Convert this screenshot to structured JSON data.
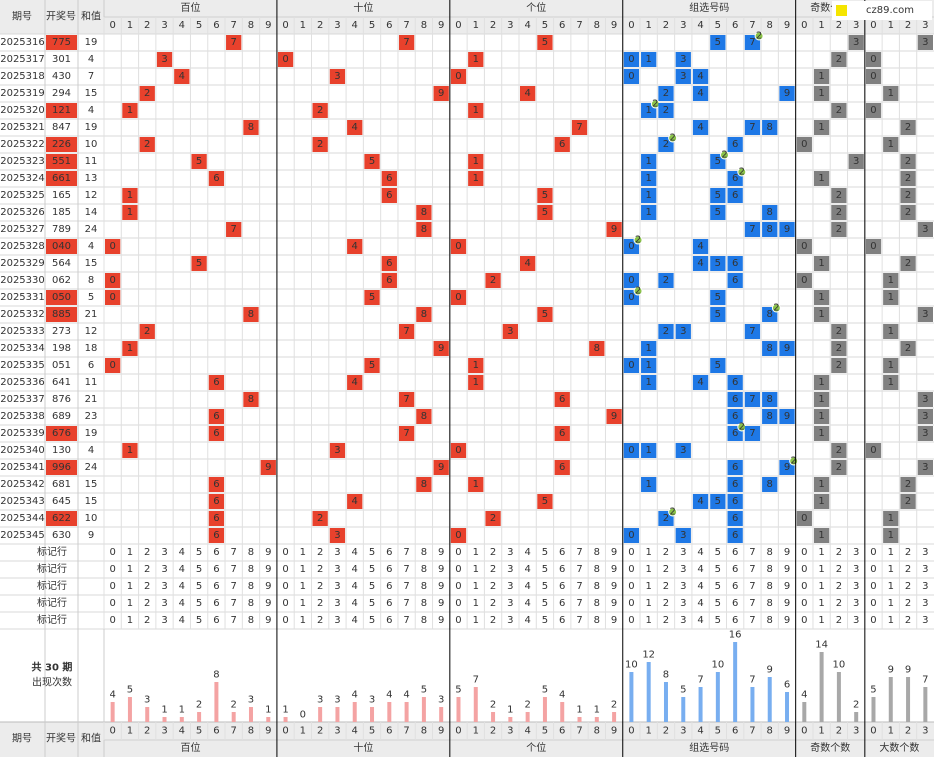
{
  "header": {
    "issue": "期号",
    "number": "开奖号",
    "sum": "和值",
    "groups": [
      "百位",
      "十位",
      "个位",
      "组选号码",
      "奇数个数",
      "大数个数"
    ],
    "digits": [
      "0",
      "1",
      "2",
      "3",
      "4",
      "5",
      "6",
      "7",
      "8",
      "9"
    ],
    "counts": [
      "0",
      "1",
      "2",
      "3"
    ]
  },
  "logo": "cz89.com",
  "draws": [
    {
      "issue": "2025316",
      "number": "775",
      "sum": 19
    },
    {
      "issue": "2025317",
      "number": "301",
      "sum": 4
    },
    {
      "issue": "2025318",
      "number": "430",
      "sum": 7
    },
    {
      "issue": "2025319",
      "number": "294",
      "sum": 15
    },
    {
      "issue": "2025320",
      "number": "121",
      "sum": 4
    },
    {
      "issue": "2025321",
      "number": "847",
      "sum": 19
    },
    {
      "issue": "2025322",
      "number": "226",
      "sum": 10
    },
    {
      "issue": "2025323",
      "number": "551",
      "sum": 11
    },
    {
      "issue": "2025324",
      "number": "661",
      "sum": 13
    },
    {
      "issue": "2025325",
      "number": "165",
      "sum": 12
    },
    {
      "issue": "2025326",
      "number": "185",
      "sum": 14
    },
    {
      "issue": "2025327",
      "number": "789",
      "sum": 24
    },
    {
      "issue": "2025328",
      "number": "040",
      "sum": 4
    },
    {
      "issue": "2025329",
      "number": "564",
      "sum": 15
    },
    {
      "issue": "2025330",
      "number": "062",
      "sum": 8
    },
    {
      "issue": "2025331",
      "number": "050",
      "sum": 5
    },
    {
      "issue": "2025332",
      "number": "885",
      "sum": 21
    },
    {
      "issue": "2025333",
      "number": "273",
      "sum": 12
    },
    {
      "issue": "2025334",
      "number": "198",
      "sum": 18
    },
    {
      "issue": "2025335",
      "number": "051",
      "sum": 6
    },
    {
      "issue": "2025336",
      "number": "641",
      "sum": 11
    },
    {
      "issue": "2025337",
      "number": "876",
      "sum": 21
    },
    {
      "issue": "2025338",
      "number": "689",
      "sum": 23
    },
    {
      "issue": "2025339",
      "number": "676",
      "sum": 19
    },
    {
      "issue": "2025340",
      "number": "130",
      "sum": 4
    },
    {
      "issue": "2025341",
      "number": "996",
      "sum": 24
    },
    {
      "issue": "2025342",
      "number": "681",
      "sum": 15
    },
    {
      "issue": "2025343",
      "number": "645",
      "sum": 15
    },
    {
      "issue": "2025344",
      "number": "622",
      "sum": 10
    },
    {
      "issue": "2025345",
      "number": "630",
      "sum": 9
    }
  ],
  "mark_row": "标记行",
  "badge": "2",
  "stats": {
    "title": "共 30 期",
    "subtitle": "出现次数",
    "groups": [
      [
        4,
        5,
        3,
        1,
        1,
        2,
        8,
        2,
        3,
        1
      ],
      [
        1,
        0,
        3,
        3,
        4,
        3,
        4,
        4,
        5,
        3
      ],
      [
        5,
        7,
        2,
        1,
        2,
        5,
        4,
        1,
        1,
        2
      ],
      [
        10,
        12,
        8,
        5,
        7,
        10,
        16,
        7,
        9,
        6
      ],
      [
        4,
        14,
        10,
        2
      ],
      [
        5,
        9,
        9,
        7
      ]
    ]
  }
}
